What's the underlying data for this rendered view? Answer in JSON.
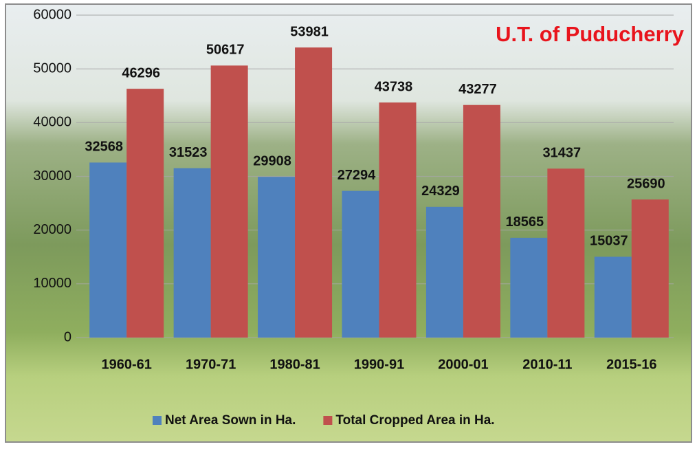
{
  "chart_data": {
    "type": "bar",
    "title": "U.T. of Puducherry",
    "categories": [
      "1960-61",
      "1970-71",
      "1980-81",
      "1990-91",
      "2000-01",
      "2010-11",
      "2015-16"
    ],
    "series": [
      {
        "name": "Net Area Sown in Ha.",
        "color": "#4f81bd",
        "values": [
          32568,
          31523,
          29908,
          27294,
          24329,
          18565,
          15037
        ]
      },
      {
        "name": "Total Cropped Area in Ha.",
        "color": "#c0504d",
        "values": [
          46296,
          50617,
          53981,
          43738,
          43277,
          31437,
          25690
        ]
      }
    ],
    "ylim": [
      0,
      60000
    ],
    "yticks": [
      0,
      10000,
      20000,
      30000,
      40000,
      50000,
      60000
    ],
    "grid": true,
    "legend": "bottom"
  }
}
